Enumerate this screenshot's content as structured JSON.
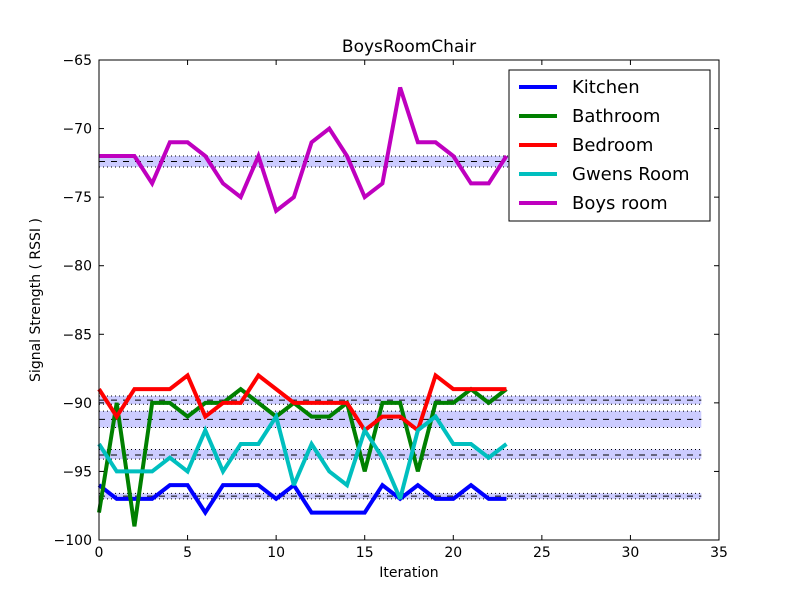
{
  "chart_data": {
    "type": "line",
    "title": "BoysRoomChair",
    "xlabel": "Iteration",
    "ylabel": "Signal Strength  ( RSSI )",
    "xlim": [
      0,
      35
    ],
    "ylim": [
      -100,
      -65
    ],
    "xticks": [
      0,
      5,
      10,
      15,
      20,
      25,
      30,
      35
    ],
    "yticks": [
      -100,
      -95,
      -90,
      -85,
      -80,
      -75,
      -70,
      -65
    ],
    "xtick_labels": [
      "0",
      "5",
      "10",
      "15",
      "20",
      "25",
      "30",
      "35"
    ],
    "ytick_labels": [
      "−100",
      "−95",
      "−90",
      "−85",
      "−80",
      "−75",
      "−70",
      "−65"
    ],
    "grid": false,
    "legend_position": "top-right",
    "series": [
      {
        "name": "Kitchen",
        "color": "#0000ff",
        "x": [
          0,
          1,
          2,
          3,
          4,
          5,
          6,
          7,
          8,
          9,
          10,
          11,
          12,
          13,
          14,
          15,
          16,
          17,
          18,
          19,
          20,
          21,
          22,
          23
        ],
        "values": [
          -96,
          -97,
          -97,
          -97,
          -96,
          -96,
          -98,
          -96,
          -96,
          -96,
          -97,
          -96,
          -98,
          -98,
          -98,
          -98,
          -96,
          -97,
          -96,
          -97,
          -97,
          -96,
          -97,
          -97
        ]
      },
      {
        "name": "Bathroom",
        "color": "#008000",
        "x": [
          0,
          1,
          2,
          3,
          4,
          5,
          6,
          7,
          8,
          9,
          10,
          11,
          12,
          13,
          14,
          15,
          16,
          17,
          18,
          19,
          20,
          21,
          22,
          23
        ],
        "values": [
          -98,
          -90,
          -99,
          -90,
          -90,
          -91,
          -90,
          -90,
          -89,
          -90,
          -91,
          -90,
          -91,
          -91,
          -90,
          -95,
          -90,
          -90,
          -95,
          -90,
          -90,
          -89,
          -90,
          -89
        ]
      },
      {
        "name": "Bedroom",
        "color": "#ff0000",
        "x": [
          0,
          1,
          2,
          3,
          4,
          5,
          6,
          7,
          8,
          9,
          10,
          11,
          12,
          13,
          14,
          15,
          16,
          17,
          18,
          19,
          20,
          21,
          22,
          23
        ],
        "values": [
          -89,
          -91,
          -89,
          -89,
          -89,
          -88,
          -91,
          -90,
          -90,
          -88,
          -89,
          -90,
          -90,
          -90,
          -90,
          -92,
          -91,
          -91,
          -92,
          -88,
          -89,
          -89,
          -89,
          -89
        ]
      },
      {
        "name": " Gwens Room",
        "color": "#00bfbf",
        "x": [
          0,
          1,
          2,
          3,
          4,
          5,
          6,
          7,
          8,
          9,
          10,
          11,
          12,
          13,
          14,
          15,
          16,
          17,
          18,
          19,
          20,
          21,
          22,
          23
        ],
        "values": [
          -93,
          -95,
          -95,
          -95,
          -94,
          -95,
          -92,
          -95,
          -93,
          -93,
          -91,
          -96,
          -93,
          -95,
          -96,
          -92,
          -94,
          -97,
          -92,
          -91,
          -93,
          -93,
          -94,
          -93
        ]
      },
      {
        "name": " Boys room",
        "color": "#bf00bf",
        "x": [
          0,
          1,
          2,
          3,
          4,
          5,
          6,
          7,
          8,
          9,
          10,
          11,
          12,
          13,
          14,
          15,
          16,
          17,
          18,
          19,
          20,
          21,
          22,
          23
        ],
        "values": [
          -72,
          -72,
          -72,
          -74,
          -71,
          -71,
          -72,
          -74,
          -75,
          -72,
          -76,
          -75,
          -71,
          -70,
          -72,
          -75,
          -74,
          -67,
          -71,
          -71,
          -72,
          -74,
          -74,
          -72
        ]
      }
    ],
    "bands": [
      {
        "x": [
          0,
          34
        ],
        "mean": -72.4,
        "low": -72.8,
        "high": -72.0
      },
      {
        "x": [
          0,
          34
        ],
        "mean": -89.8,
        "low": -90.1,
        "high": -89.5
      },
      {
        "x": [
          0,
          34
        ],
        "mean": -91.2,
        "low": -91.8,
        "high": -90.6
      },
      {
        "x": [
          0,
          34
        ],
        "mean": -93.8,
        "low": -94.1,
        "high": -93.4
      },
      {
        "x": [
          0,
          34
        ],
        "mean": -96.8,
        "low": -97.0,
        "high": -96.6
      }
    ]
  }
}
